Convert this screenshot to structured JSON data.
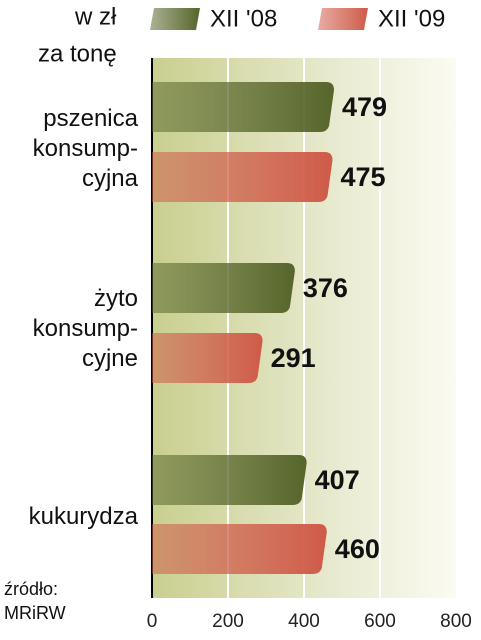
{
  "chart_data": {
    "type": "bar",
    "orientation": "horizontal",
    "unit": [
      "w zł",
      "za tonę"
    ],
    "source": [
      "źródło:",
      "MRiRW"
    ],
    "categories": [
      "pszenica\nkonsump-\ncyjna",
      "żyto\nkonsump-\ncyjne",
      "kukurydza"
    ],
    "series": [
      {
        "name": "XII '08",
        "color": "#56652a",
        "values": [
          479,
          376,
          407
        ]
      },
      {
        "name": "XII '09",
        "color": "#cf5a48",
        "values": [
          475,
          291,
          460
        ]
      }
    ],
    "xlim": [
      0,
      800
    ],
    "xticks": [
      0,
      200,
      400,
      600,
      800
    ],
    "grid": true
  }
}
